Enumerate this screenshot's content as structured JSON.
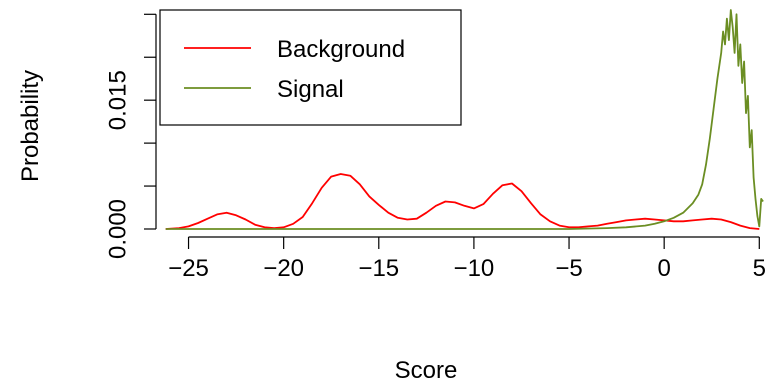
{
  "chart_data": {
    "type": "line",
    "title": "",
    "xlabel": "Score",
    "ylabel": "Probability",
    "xlim": [
      -26.5,
      5.3
    ],
    "ylim": [
      -0.00035,
      0.0255
    ],
    "x_ticks": [
      -25,
      -20,
      -15,
      -10,
      -5,
      0,
      5
    ],
    "x_tick_labels": [
      "−25",
      "−20",
      "−15",
      "−10",
      "−5",
      "0",
      "5"
    ],
    "y_ticks": [
      0.0,
      0.005,
      0.01,
      0.015,
      0.02,
      0.025
    ],
    "y_tick_labels": [
      "0.000",
      "",
      "",
      "0.015",
      "",
      ""
    ],
    "legend_position": "top-left",
    "series": [
      {
        "name": "Background",
        "color": "#ff0000",
        "x": [
          -26.2,
          -25.5,
          -25.0,
          -24.5,
          -24.0,
          -23.5,
          -23.0,
          -22.5,
          -22.0,
          -21.5,
          -21.0,
          -20.5,
          -20.0,
          -19.5,
          -19.0,
          -18.5,
          -18.0,
          -17.5,
          -17.0,
          -16.5,
          -16.0,
          -15.5,
          -15.0,
          -14.5,
          -14.0,
          -13.5,
          -13.0,
          -12.5,
          -12.0,
          -11.5,
          -11.0,
          -10.5,
          -10.0,
          -9.5,
          -9.0,
          -8.5,
          -8.0,
          -7.5,
          -7.0,
          -6.5,
          -6.0,
          -5.5,
          -5.0,
          -4.5,
          -4.0,
          -3.5,
          -3.0,
          -2.5,
          -2.0,
          -1.5,
          -1.0,
          -0.5,
          0.0,
          0.5,
          1.0,
          1.5,
          2.0,
          2.5,
          3.0,
          3.5,
          4.0,
          4.5,
          5.0
        ],
        "y": [
          0.0,
          0.0001,
          0.0003,
          0.0007,
          0.0012,
          0.0017,
          0.0019,
          0.0016,
          0.0011,
          0.0005,
          0.0002,
          0.0001,
          0.0002,
          0.0006,
          0.0014,
          0.003,
          0.0048,
          0.0061,
          0.0064,
          0.0062,
          0.0052,
          0.0038,
          0.0028,
          0.0019,
          0.0013,
          0.0011,
          0.0012,
          0.0019,
          0.0027,
          0.0032,
          0.0031,
          0.0027,
          0.0024,
          0.0029,
          0.0041,
          0.0051,
          0.0053,
          0.0044,
          0.003,
          0.0017,
          0.0009,
          0.0004,
          0.0002,
          0.0002,
          0.0003,
          0.0004,
          0.0006,
          0.0008,
          0.001,
          0.0011,
          0.0012,
          0.0011,
          0.001,
          0.0009,
          0.0009,
          0.001,
          0.0011,
          0.0012,
          0.0011,
          0.0008,
          0.0004,
          0.0001,
          0.0
        ]
      },
      {
        "name": "Signal",
        "color": "#6b8e23",
        "x": [
          -26.2,
          -5.0,
          -3.0,
          -2.0,
          -1.0,
          -0.5,
          0.0,
          0.5,
          1.0,
          1.5,
          1.8,
          2.0,
          2.2,
          2.4,
          2.6,
          2.8,
          3.0,
          3.1,
          3.2,
          3.3,
          3.4,
          3.5,
          3.6,
          3.7,
          3.8,
          3.9,
          4.0,
          4.1,
          4.2,
          4.3,
          4.4,
          4.5,
          4.6,
          4.7,
          4.8,
          4.9,
          5.0,
          5.1,
          5.2
        ],
        "y": [
          0.0,
          0.0,
          0.0001,
          0.0002,
          0.0004,
          0.0006,
          0.0009,
          0.0013,
          0.0019,
          0.003,
          0.004,
          0.0052,
          0.0075,
          0.0105,
          0.014,
          0.0175,
          0.0205,
          0.023,
          0.0215,
          0.0245,
          0.022,
          0.0255,
          0.0235,
          0.0205,
          0.025,
          0.019,
          0.0215,
          0.017,
          0.0195,
          0.0135,
          0.0155,
          0.0095,
          0.0115,
          0.006,
          0.0035,
          0.0015,
          0.0003,
          0.0035,
          0.0032
        ]
      }
    ]
  }
}
